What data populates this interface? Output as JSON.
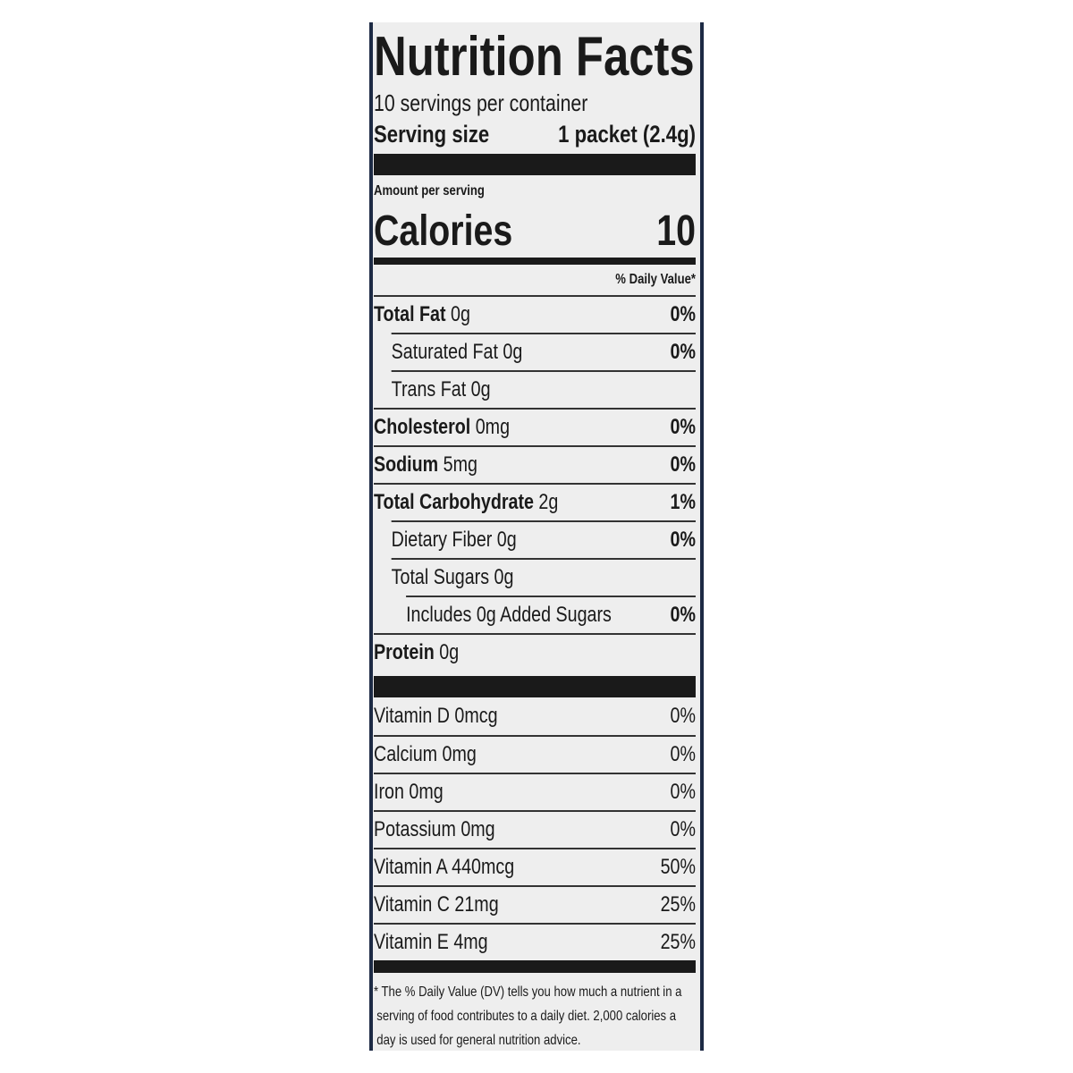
{
  "header": {
    "title": "Nutrition Facts",
    "servings": "10 servings per container",
    "serving_size_label": "Serving size",
    "serving_size": "1 packet (2.4g)"
  },
  "calories": {
    "label": "Amount per serving",
    "name": "Calories",
    "value": 10
  },
  "daily_value_heading": "% Daily Value*",
  "nutrients": [
    {
      "name": "Total Fat",
      "amount": "0g",
      "dv": "0%",
      "sub": [
        {
          "name": "Saturated Fat",
          "amount": "0g",
          "dv": "0%"
        },
        {
          "name": "Trans Fat",
          "amount": "0g"
        }
      ]
    },
    {
      "name": "Cholesterol",
      "amount": "0mg",
      "dv": "0%"
    },
    {
      "name": "Sodium",
      "amount": "5mg",
      "dv": "0%"
    },
    {
      "name": "Total Carbohydrate",
      "amount": "2g",
      "dv": "1%",
      "sub": [
        {
          "name": "Dietary Fiber",
          "amount": "0g",
          "dv": "0%"
        },
        {
          "name": "Total Sugars",
          "amount": "0g",
          "sub": [
            {
              "text": "Includes 0g Added Sugars",
              "dv": "0%"
            }
          ]
        }
      ]
    },
    {
      "name": "Protein",
      "amount": "0g"
    }
  ],
  "vitamins": [
    {
      "text": "Vitamin D 0mcg",
      "dv": "0%"
    },
    {
      "text": "Calcium 0mg",
      "dv": "0%"
    },
    {
      "text": "Iron 0mg",
      "dv": "0%"
    },
    {
      "text": "Potassium 0mg",
      "dv": "0%"
    },
    {
      "text": "Vitamin A 440mcg",
      "dv": "50%"
    },
    {
      "text": "Vitamin C 21mg",
      "dv": "25%"
    },
    {
      "text": "Vitamin E 4mg",
      "dv": "25%"
    }
  ],
  "footnote": "* The % Daily Value (DV) tells you how much a nutrient in a serving of food contributes to a daily diet. 2,000 calories a day is used for general nutrition advice."
}
